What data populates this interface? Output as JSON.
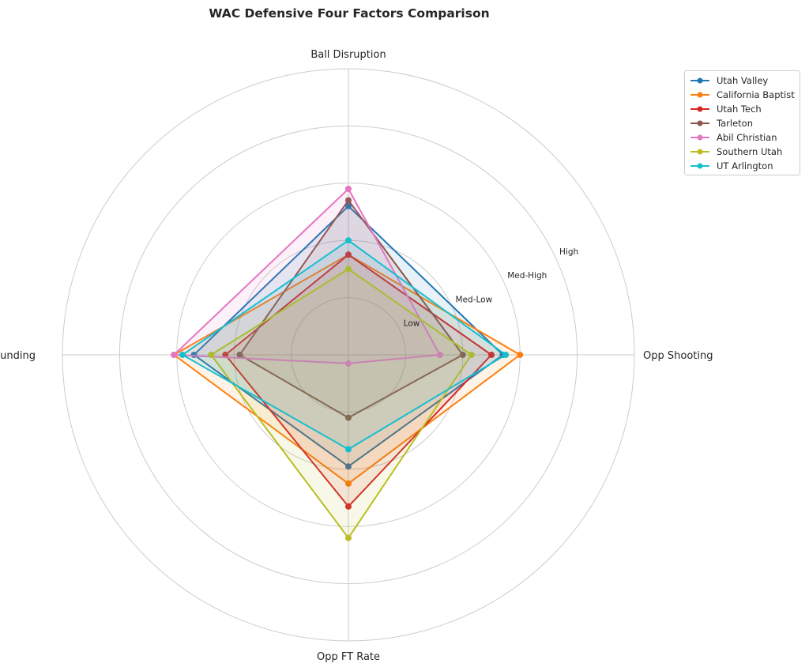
{
  "chart_data": {
    "type": "radar",
    "title": "WAC Defensive Four Factors Comparison",
    "axes": [
      "Ball Disruption",
      "Opp Shooting",
      "Opp FT Rate",
      "Def Rebounding"
    ],
    "radial_ticks": [
      {
        "value": 1,
        "label": "Low"
      },
      {
        "value": 2,
        "label": "Med-Low"
      },
      {
        "value": 3,
        "label": "Med-High"
      },
      {
        "value": 4,
        "label": "High"
      }
    ],
    "rlim": [
      0,
      5
    ],
    "grid": true,
    "legend_position": "top-right",
    "series": [
      {
        "name": "Utah Valley",
        "color": "#1f77b4",
        "values": [
          2.6,
          2.7,
          1.95,
          2.7
        ]
      },
      {
        "name": "California Baptist",
        "color": "#ff7f0e",
        "values": [
          1.75,
          3.0,
          2.25,
          3.05
        ]
      },
      {
        "name": "Utah Tech",
        "color": "#d62728",
        "values": [
          1.75,
          2.5,
          2.65,
          2.15
        ]
      },
      {
        "name": "Tarleton",
        "color": "#8c564b",
        "values": [
          2.7,
          2.0,
          1.1,
          1.9
        ]
      },
      {
        "name": "Abil Christian",
        "color": "#e377c2",
        "values": [
          2.9,
          1.6,
          0.15,
          3.05
        ]
      },
      {
        "name": "Southern Utah",
        "color": "#bcbd22",
        "values": [
          1.5,
          2.15,
          3.2,
          2.4
        ]
      },
      {
        "name": "UT Arlington",
        "color": "#17becf",
        "values": [
          2.0,
          2.75,
          1.65,
          2.9
        ]
      }
    ]
  }
}
